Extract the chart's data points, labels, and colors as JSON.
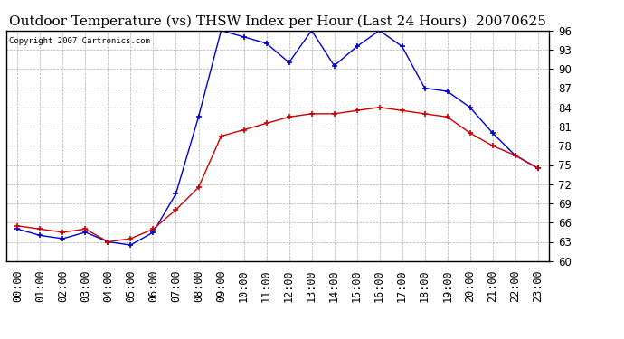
{
  "title": "Outdoor Temperature (vs) THSW Index per Hour (Last 24 Hours)  20070625",
  "copyright": "Copyright 2007 Cartronics.com",
  "xlabels": [
    "00:00",
    "01:00",
    "02:00",
    "03:00",
    "04:00",
    "05:00",
    "06:00",
    "07:00",
    "08:00",
    "09:00",
    "10:00",
    "11:00",
    "12:00",
    "13:00",
    "14:00",
    "15:00",
    "16:00",
    "17:00",
    "18:00",
    "19:00",
    "20:00",
    "21:00",
    "22:00",
    "23:00"
  ],
  "outdoor_temp": [
    65.5,
    65.0,
    64.5,
    65.0,
    63.0,
    63.5,
    65.0,
    68.0,
    71.5,
    79.5,
    80.5,
    81.5,
    82.5,
    83.0,
    83.0,
    83.5,
    84.0,
    83.5,
    83.0,
    82.5,
    80.0,
    78.0,
    76.5,
    74.5
  ],
  "thsw_index": [
    65.0,
    64.0,
    63.5,
    64.5,
    63.0,
    62.5,
    64.5,
    70.5,
    82.5,
    96.0,
    95.0,
    94.0,
    91.0,
    96.0,
    90.5,
    93.5,
    96.0,
    93.5,
    87.0,
    86.5,
    84.0,
    80.0,
    76.5,
    74.5
  ],
  "ylim": [
    60.0,
    96.0
  ],
  "yticks": [
    60.0,
    63.0,
    66.0,
    69.0,
    72.0,
    75.0,
    78.0,
    81.0,
    84.0,
    87.0,
    90.0,
    93.0,
    96.0
  ],
  "temp_color": "#cc0000",
  "thsw_color": "#0000cc",
  "bg_color": "#ffffff",
  "plot_bg_color": "#ffffff",
  "grid_color": "#999999",
  "border_color": "#000000",
  "title_fontsize": 11,
  "copyright_fontsize": 6.5,
  "tick_fontsize": 8.5,
  "marker": "+"
}
